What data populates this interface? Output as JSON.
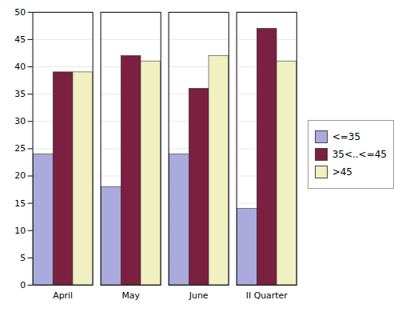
{
  "chart_data": {
    "type": "bar",
    "categories": [
      "April",
      "May",
      "June",
      "II Quarter"
    ],
    "series": [
      {
        "name": "<=35",
        "color": "#aaaadd",
        "values": [
          24,
          18,
          24,
          14
        ]
      },
      {
        "name": "35<..<=45",
        "color": "#7b2040",
        "values": [
          39,
          42,
          36,
          47
        ]
      },
      {
        "name": ">45",
        "color": "#f0f0c0",
        "values": [
          39,
          41,
          42,
          41
        ]
      }
    ],
    "ylim": [
      0,
      50
    ],
    "yticks": [
      0,
      5,
      10,
      15,
      20,
      25,
      30,
      35,
      40,
      45,
      50
    ],
    "grid": true,
    "legend": "right"
  }
}
